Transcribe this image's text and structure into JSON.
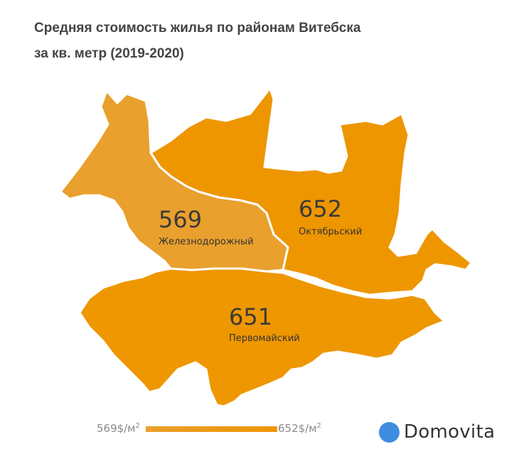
{
  "title": {
    "line1": "Средняя стоимость жилья по районам Витебска",
    "line2": "за кв. метр (2019-2020)"
  },
  "map": {
    "districts": [
      {
        "id": "zheleznodorozhny",
        "name": "Железнодорожный",
        "value": "569",
        "color": "#e9a02d"
      },
      {
        "id": "oktyabrsky",
        "name": "Октябрьский",
        "value": "652",
        "color": "#ee9600"
      },
      {
        "id": "pervomaysky",
        "name": "Первомайский",
        "value": "651",
        "color": "#ee9700"
      }
    ]
  },
  "legend": {
    "min_value": "569$/м",
    "max_value": "652$/м",
    "unit_exponent": "2",
    "min_color": "#e9a02d",
    "max_color": "#ee9600"
  },
  "brand": {
    "logo_text": "Domovita",
    "dot_color": "#3f8de0"
  }
}
